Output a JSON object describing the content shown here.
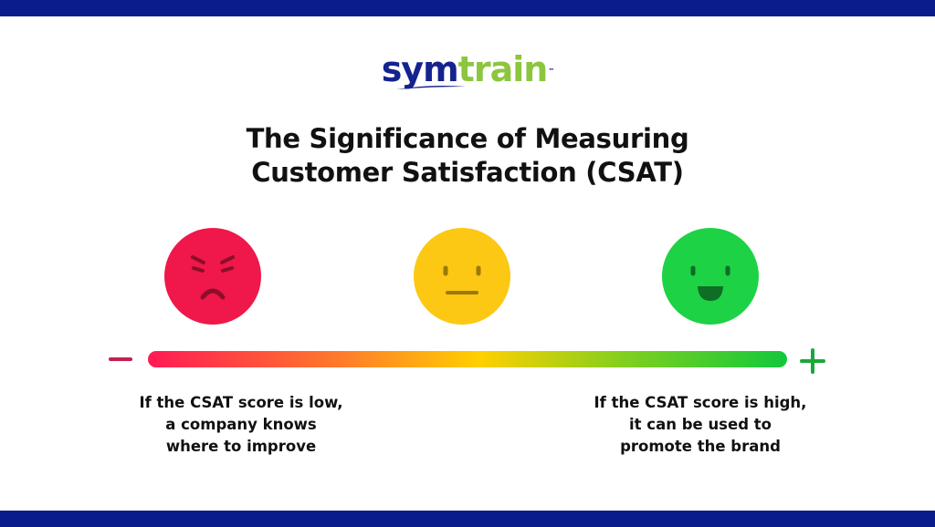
{
  "brand": {
    "logo_part1": "sym",
    "logo_part2": "train",
    "trademark": "™"
  },
  "title": {
    "line1": "The Significance of Measuring",
    "line2": "Customer Satisfaction (CSAT)"
  },
  "faces": [
    {
      "mood": "angry",
      "icon": "angry-face-icon",
      "color": "#f0174a"
    },
    {
      "mood": "neutral",
      "icon": "neutral-face-icon",
      "color": "#fcc814"
    },
    {
      "mood": "happy",
      "icon": "happy-face-icon",
      "color": "#1dd245"
    }
  ],
  "scale": {
    "low_symbol": "−",
    "high_symbol": "+",
    "gradient": [
      "#ff1a55",
      "#ff7a2a",
      "#ffd000",
      "#7fcf1f",
      "#11c83c"
    ]
  },
  "captions": {
    "left": {
      "line1": "If the CSAT score is low,",
      "line2": "a company knows",
      "line3": "where to improve"
    },
    "right": {
      "line1": "If the CSAT score is high,",
      "line2": "it can be used to",
      "line3": "promote the brand"
    }
  },
  "colors": {
    "frame_navy": "#0a1c8a",
    "logo_navy": "#14238f",
    "logo_green": "#8cc63f",
    "minus_color": "#c2214e",
    "plus_color": "#1aa83a",
    "face_detail_red": "#8b0f2a",
    "face_detail_yellow": "#9a7a05",
    "face_detail_green": "#0d6e24"
  }
}
